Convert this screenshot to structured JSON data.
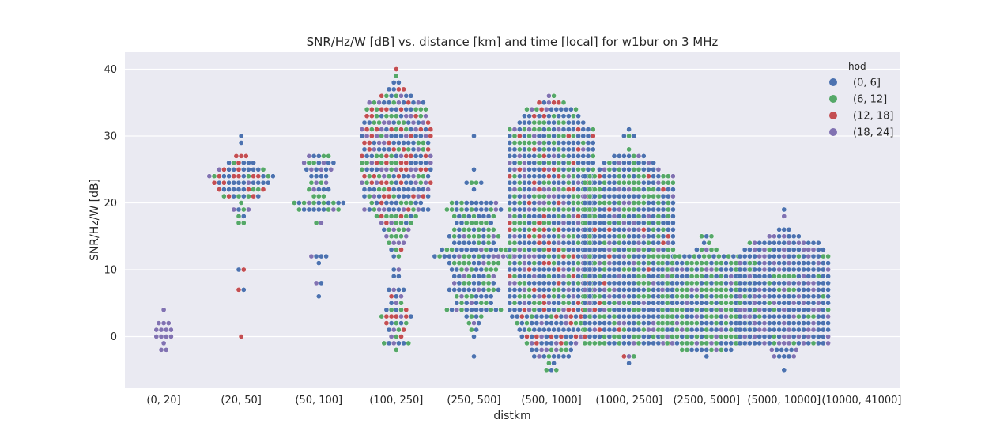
{
  "chart_data": {
    "type": "scatter",
    "subtype": "swarm",
    "title": "SNR/Hz/W [dB] vs. distance [km] and time [local] for w1bur on 3 MHz",
    "xlabel": "distkm",
    "ylabel": "SNR/Hz/W [dB]",
    "ylim": [
      -8,
      43
    ],
    "yticks": [
      0,
      10,
      20,
      30,
      40
    ],
    "grid": true,
    "legend_position": "top-right",
    "legend_title": "hod",
    "categories": [
      "(0, 20]",
      "(20, 50]",
      "(50, 100]",
      "(100, 250]",
      "(250, 500]",
      "(500, 1000]",
      "(1000, 2500]",
      "(2500, 5000]",
      "(5000, 10000]",
      "(10000, 41000]"
    ],
    "hue_levels": [
      {
        "name": "(0, 6]",
        "color": "#4c72b0"
      },
      {
        "name": "(6, 12]",
        "color": "#55a868"
      },
      {
        "name": "(12, 18]",
        "color": "#c44e52"
      },
      {
        "name": "(18, 24]",
        "color": "#8172b2"
      }
    ],
    "distributions": [
      {
        "category": "(0, 20]",
        "bins": [
          [
            4,
            1
          ],
          [
            2,
            3
          ],
          [
            1,
            4
          ],
          [
            0,
            4
          ],
          [
            -1,
            1
          ],
          [
            -2,
            2
          ]
        ],
        "mix": [
          0,
          0,
          0,
          1
        ]
      },
      {
        "category": "(20, 50]",
        "bins": [
          [
            30,
            1
          ],
          [
            29,
            1
          ],
          [
            27,
            3
          ],
          [
            26,
            6
          ],
          [
            25,
            10
          ],
          [
            24,
            14
          ],
          [
            23,
            12
          ],
          [
            22,
            10
          ],
          [
            21,
            8
          ],
          [
            20,
            1
          ],
          [
            19,
            4
          ],
          [
            18,
            2
          ],
          [
            17,
            2
          ],
          [
            10,
            2
          ],
          [
            7,
            2
          ],
          [
            0,
            1
          ]
        ],
        "mix": [
          0.45,
          0.2,
          0.25,
          0.1
        ]
      },
      {
        "category": "(50, 100]",
        "bins": [
          [
            27,
            5
          ],
          [
            26,
            7
          ],
          [
            25,
            6
          ],
          [
            24,
            4
          ],
          [
            23,
            4
          ],
          [
            22,
            5
          ],
          [
            21,
            3
          ],
          [
            20,
            11
          ],
          [
            19,
            9
          ],
          [
            17,
            2
          ],
          [
            12,
            4
          ],
          [
            11,
            1
          ],
          [
            8,
            2
          ],
          [
            6,
            1
          ]
        ],
        "mix": [
          0.5,
          0.3,
          0,
          0.2
        ]
      },
      {
        "category": "(100, 250]",
        "bins": [
          [
            40,
            1
          ],
          [
            39,
            1
          ],
          [
            38,
            2
          ],
          [
            37,
            4
          ],
          [
            36,
            7
          ],
          [
            35,
            12
          ],
          [
            34,
            13
          ],
          [
            33,
            13
          ],
          [
            32,
            14
          ],
          [
            31,
            15
          ],
          [
            30,
            15
          ],
          [
            29,
            14
          ],
          [
            28,
            14
          ],
          [
            27,
            15
          ],
          [
            26,
            15
          ],
          [
            25,
            15
          ],
          [
            24,
            14
          ],
          [
            23,
            15
          ],
          [
            22,
            14
          ],
          [
            21,
            14
          ],
          [
            20,
            11
          ],
          [
            19,
            14
          ],
          [
            18,
            9
          ],
          [
            17,
            7
          ],
          [
            16,
            6
          ],
          [
            15,
            5
          ],
          [
            14,
            4
          ],
          [
            13,
            3
          ],
          [
            12,
            2
          ],
          [
            10,
            2
          ],
          [
            9,
            2
          ],
          [
            7,
            4
          ],
          [
            6,
            3
          ],
          [
            5,
            3
          ],
          [
            4,
            5
          ],
          [
            3,
            7
          ],
          [
            2,
            5
          ],
          [
            1,
            4
          ],
          [
            0,
            3
          ],
          [
            -1,
            6
          ],
          [
            -2,
            1
          ]
        ],
        "mix": [
          0.35,
          0.25,
          0.2,
          0.2
        ]
      },
      {
        "category": "(250, 500]",
        "bins": [
          [
            30,
            1
          ],
          [
            25,
            1
          ],
          [
            23,
            4
          ],
          [
            22,
            1
          ],
          [
            20,
            10
          ],
          [
            19,
            12
          ],
          [
            18,
            9
          ],
          [
            17,
            8
          ],
          [
            16,
            9
          ],
          [
            15,
            11
          ],
          [
            14,
            9
          ],
          [
            13,
            14
          ],
          [
            12,
            17
          ],
          [
            11,
            11
          ],
          [
            10,
            10
          ],
          [
            9,
            9
          ],
          [
            8,
            9
          ],
          [
            7,
            11
          ],
          [
            6,
            8
          ],
          [
            5,
            8
          ],
          [
            4,
            12
          ],
          [
            3,
            4
          ],
          [
            2,
            3
          ],
          [
            1,
            2
          ],
          [
            0,
            1
          ],
          [
            -3,
            1
          ]
        ],
        "mix": [
          0.55,
          0.35,
          0,
          0.1
        ]
      },
      {
        "category": "(500, 1000]",
        "bins": [
          [
            36,
            2
          ],
          [
            35,
            6
          ],
          [
            34,
            11
          ],
          [
            33,
            12
          ],
          [
            32,
            14
          ],
          [
            31,
            18
          ],
          [
            30,
            18
          ],
          [
            29,
            18
          ],
          [
            28,
            18
          ],
          [
            27,
            18
          ],
          [
            26,
            18
          ],
          [
            25,
            18
          ],
          [
            24,
            18
          ],
          [
            23,
            18
          ],
          [
            22,
            18
          ],
          [
            21,
            18
          ],
          [
            20,
            18
          ],
          [
            19,
            18
          ],
          [
            18,
            18
          ],
          [
            17,
            18
          ],
          [
            16,
            18
          ],
          [
            15,
            18
          ],
          [
            14,
            18
          ],
          [
            13,
            18
          ],
          [
            12,
            18
          ],
          [
            11,
            18
          ],
          [
            10,
            18
          ],
          [
            9,
            18
          ],
          [
            8,
            18
          ],
          [
            7,
            18
          ],
          [
            6,
            18
          ],
          [
            5,
            18
          ],
          [
            4,
            18
          ],
          [
            3,
            17
          ],
          [
            2,
            15
          ],
          [
            1,
            14
          ],
          [
            0,
            13
          ],
          [
            -1,
            11
          ],
          [
            -2,
            9
          ],
          [
            -3,
            8
          ],
          [
            -4,
            2
          ],
          [
            -5,
            3
          ]
        ],
        "mix": [
          0.5,
          0.25,
          0.13,
          0.12
        ]
      },
      {
        "category": "(1000, 2500]",
        "bins": [
          [
            31,
            1
          ],
          [
            30,
            3
          ],
          [
            28,
            1
          ],
          [
            27,
            7
          ],
          [
            26,
            11
          ],
          [
            25,
            13
          ],
          [
            24,
            19
          ],
          [
            23,
            19
          ],
          [
            22,
            19
          ],
          [
            21,
            19
          ],
          [
            20,
            19
          ],
          [
            19,
            19
          ],
          [
            18,
            19
          ],
          [
            17,
            19
          ],
          [
            16,
            19
          ],
          [
            15,
            19
          ],
          [
            14,
            19
          ],
          [
            13,
            19
          ],
          [
            12,
            19
          ],
          [
            11,
            19
          ],
          [
            10,
            19
          ],
          [
            9,
            19
          ],
          [
            8,
            19
          ],
          [
            7,
            19
          ],
          [
            6,
            19
          ],
          [
            5,
            19
          ],
          [
            4,
            19
          ],
          [
            3,
            19
          ],
          [
            2,
            19
          ],
          [
            1,
            19
          ],
          [
            0,
            19
          ],
          [
            -1,
            19
          ],
          [
            -3,
            3
          ],
          [
            -4,
            1
          ]
        ],
        "mix": [
          0.55,
          0.3,
          0.03,
          0.12
        ]
      },
      {
        "category": "(2500, 5000]",
        "bins": [
          [
            15,
            3
          ],
          [
            14,
            2
          ],
          [
            13,
            5
          ],
          [
            12,
            14
          ],
          [
            11,
            19
          ],
          [
            10,
            19
          ],
          [
            9,
            19
          ],
          [
            8,
            19
          ],
          [
            7,
            19
          ],
          [
            6,
            19
          ],
          [
            5,
            19
          ],
          [
            4,
            19
          ],
          [
            3,
            19
          ],
          [
            2,
            19
          ],
          [
            1,
            19
          ],
          [
            0,
            19
          ],
          [
            -1,
            17
          ],
          [
            -2,
            11
          ],
          [
            -3,
            1
          ]
        ],
        "mix": [
          0.4,
          0.48,
          0,
          0.12
        ]
      },
      {
        "category": "(5000, 10000]",
        "bins": [
          [
            19,
            1
          ],
          [
            18,
            1
          ],
          [
            16,
            3
          ],
          [
            15,
            7
          ],
          [
            14,
            15
          ],
          [
            13,
            17
          ],
          [
            12,
            19
          ],
          [
            11,
            19
          ],
          [
            10,
            19
          ],
          [
            9,
            19
          ],
          [
            8,
            19
          ],
          [
            7,
            19
          ],
          [
            6,
            19
          ],
          [
            5,
            19
          ],
          [
            4,
            19
          ],
          [
            3,
            19
          ],
          [
            2,
            19
          ],
          [
            1,
            19
          ],
          [
            0,
            19
          ],
          [
            -1,
            19
          ],
          [
            -2,
            6
          ],
          [
            -3,
            5
          ],
          [
            -5,
            1
          ]
        ],
        "mix": [
          0.72,
          0.1,
          0,
          0.18
        ]
      },
      {
        "category": "(10000, 41000]",
        "bins": [],
        "mix": [
          0,
          0,
          0,
          0
        ]
      }
    ]
  }
}
